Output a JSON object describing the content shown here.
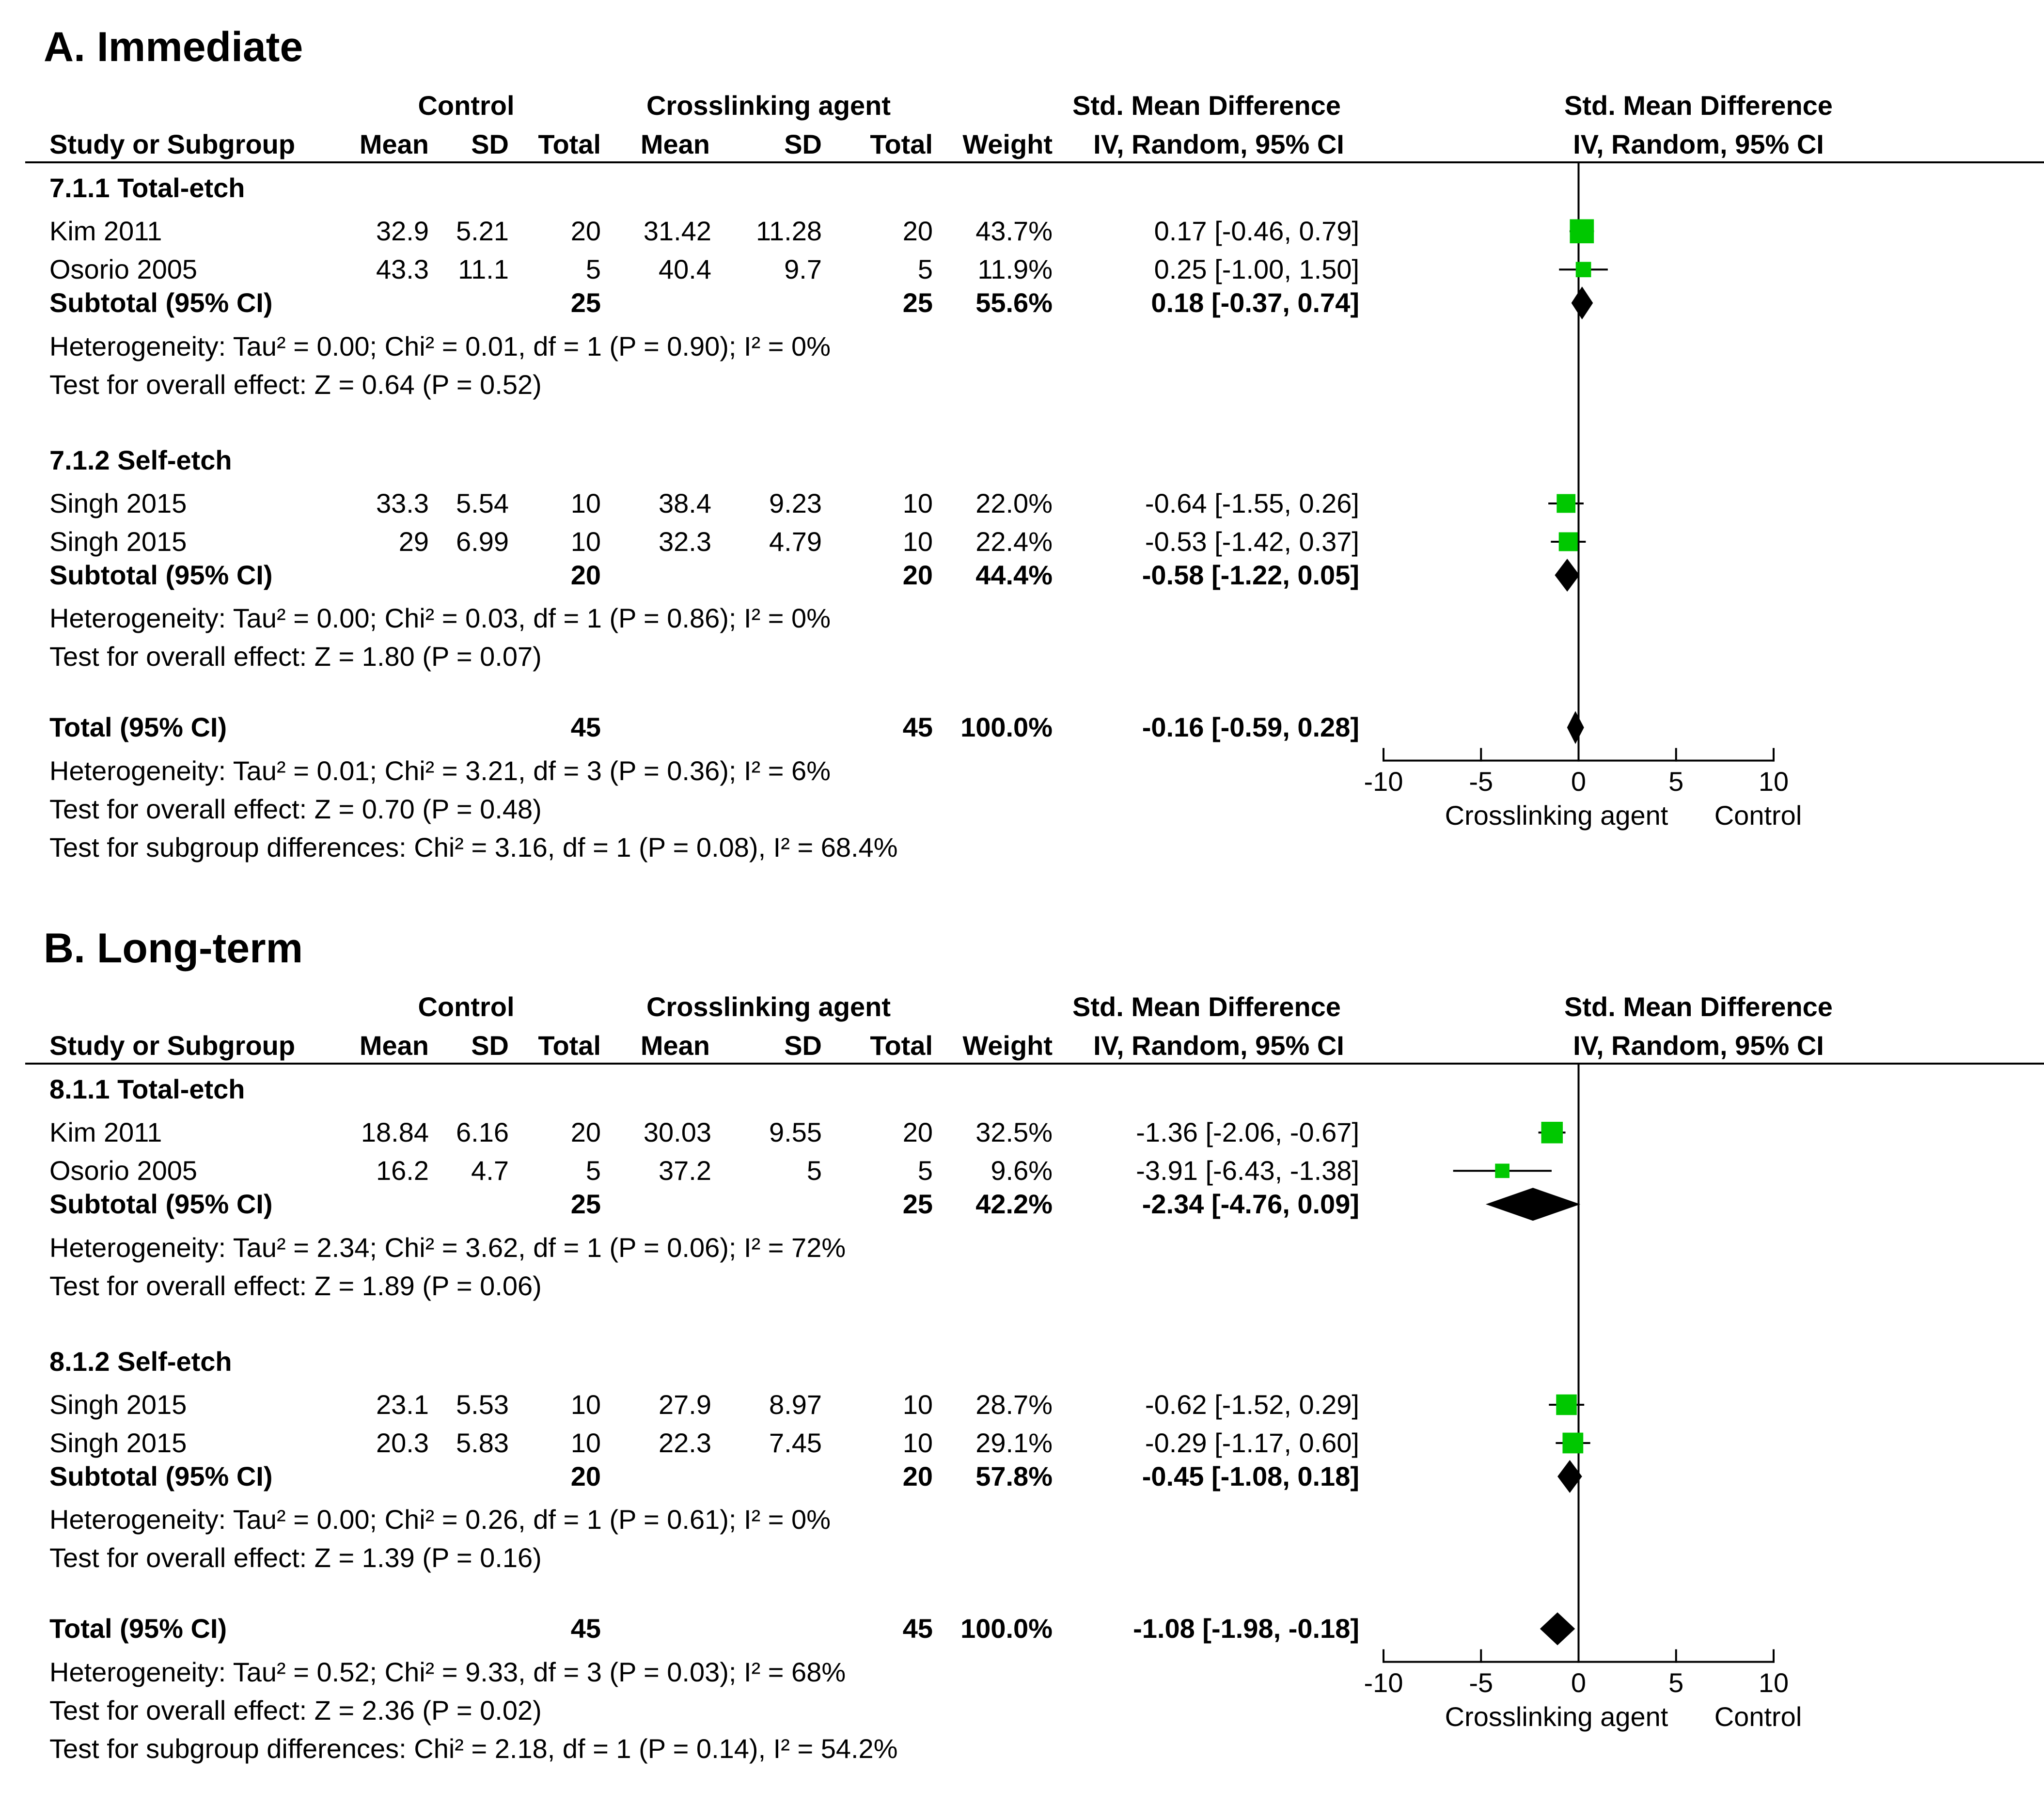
{
  "chart_data": [
    {
      "type": "forest",
      "title": "A. Immediate",
      "header": {
        "control": "Control",
        "treatment": "Crosslinking agent",
        "smd_col": "Std. Mean Difference",
        "smd_plot": "Std. Mean Difference",
        "cols": {
          "study": "Study or Subgroup",
          "c_mean": "Mean",
          "c_sd": "SD",
          "c_total": "Total",
          "t_mean": "Mean",
          "t_sd": "SD",
          "t_total": "Total",
          "weight": "Weight",
          "ci": "IV, Random, 95% CI",
          "plot_ci": "IV, Random, 95% CI"
        }
      },
      "subgroups": [
        {
          "label": "7.1.1 Total-etch",
          "studies": [
            {
              "name": "Kim 2011",
              "c_mean": "32.9",
              "c_sd": "5.21",
              "c_n": "20",
              "t_mean": "31.42",
              "t_sd": "11.28",
              "t_n": "20",
              "weight": "43.7%",
              "ci_text": "0.17 [-0.46, 0.79]",
              "est": 0.17,
              "lo": -0.46,
              "hi": 0.79,
              "w": 43.7
            },
            {
              "name": "Osorio 2005",
              "c_mean": "43.3",
              "c_sd": "11.1",
              "c_n": "5",
              "t_mean": "40.4",
              "t_sd": "9.7",
              "t_n": "5",
              "weight": "11.9%",
              "ci_text": "0.25 [-1.00, 1.50]",
              "est": 0.25,
              "lo": -1.0,
              "hi": 1.5,
              "w": 11.9
            }
          ],
          "subtotal": {
            "label": "Subtotal (95% CI)",
            "c_n": "25",
            "t_n": "25",
            "weight": "55.6%",
            "ci_text": "0.18 [-0.37, 0.74]",
            "est": 0.18,
            "lo": -0.37,
            "hi": 0.74
          },
          "heterogeneity": "Heterogeneity: Tau² = 0.00; Chi² = 0.01, df = 1 (P = 0.90); I² = 0%",
          "overall": "Test for overall effect: Z = 0.64 (P = 0.52)"
        },
        {
          "label": "7.1.2 Self-etch",
          "studies": [
            {
              "name": "Singh 2015",
              "c_mean": "33.3",
              "c_sd": "5.54",
              "c_n": "10",
              "t_mean": "38.4",
              "t_sd": "9.23",
              "t_n": "10",
              "weight": "22.0%",
              "ci_text": "-0.64 [-1.55, 0.26]",
              "est": -0.64,
              "lo": -1.55,
              "hi": 0.26,
              "w": 22.0
            },
            {
              "name": "Singh 2015",
              "c_mean": "29",
              "c_sd": "6.99",
              "c_n": "10",
              "t_mean": "32.3",
              "t_sd": "4.79",
              "t_n": "10",
              "weight": "22.4%",
              "ci_text": "-0.53 [-1.42, 0.37]",
              "est": -0.53,
              "lo": -1.42,
              "hi": 0.37,
              "w": 22.4
            }
          ],
          "subtotal": {
            "label": "Subtotal (95% CI)",
            "c_n": "20",
            "t_n": "20",
            "weight": "44.4%",
            "ci_text": "-0.58 [-1.22, 0.05]",
            "est": -0.58,
            "lo": -1.22,
            "hi": 0.05
          },
          "heterogeneity": "Heterogeneity: Tau² = 0.00; Chi² = 0.03, df = 1 (P = 0.86); I² = 0%",
          "overall": "Test for overall effect: Z = 1.80 (P = 0.07)"
        }
      ],
      "total": {
        "label": "Total (95% CI)",
        "c_n": "45",
        "t_n": "45",
        "weight": "100.0%",
        "ci_text": "-0.16 [-0.59, 0.28]",
        "est": -0.16,
        "lo": -0.59,
        "hi": 0.28
      },
      "footer": [
        "Heterogeneity: Tau² = 0.01; Chi² = 3.21, df = 3 (P = 0.36); I² = 6%",
        "Test for overall effect: Z = 0.70 (P = 0.48)",
        "Test for subgroup differences: Chi² = 3.16, df = 1 (P = 0.08), I² = 68.4%"
      ],
      "axis": {
        "min": -10,
        "max": 10,
        "ticks": [
          -10,
          -5,
          0,
          5,
          10
        ],
        "tick_labels": [
          "-10",
          "-5",
          "0",
          "5",
          "10"
        ],
        "left_label": "Crosslinking agent",
        "right_label": "Control"
      }
    },
    {
      "type": "forest",
      "title": "B. Long-term",
      "header": {
        "control": "Control",
        "treatment": "Crosslinking agent",
        "smd_col": "Std. Mean Difference",
        "smd_plot": "Std. Mean Difference",
        "cols": {
          "study": "Study or Subgroup",
          "c_mean": "Mean",
          "c_sd": "SD",
          "c_total": "Total",
          "t_mean": "Mean",
          "t_sd": "SD",
          "t_total": "Total",
          "weight": "Weight",
          "ci": "IV, Random, 95% CI",
          "plot_ci": "IV, Random, 95% CI"
        }
      },
      "subgroups": [
        {
          "label": "8.1.1 Total-etch",
          "studies": [
            {
              "name": "Kim 2011",
              "c_mean": "18.84",
              "c_sd": "6.16",
              "c_n": "20",
              "t_mean": "30.03",
              "t_sd": "9.55",
              "t_n": "20",
              "weight": "32.5%",
              "ci_text": "-1.36 [-2.06, -0.67]",
              "est": -1.36,
              "lo": -2.06,
              "hi": -0.67,
              "w": 32.5
            },
            {
              "name": "Osorio 2005",
              "c_mean": "16.2",
              "c_sd": "4.7",
              "c_n": "5",
              "t_mean": "37.2",
              "t_sd": "5",
              "t_n": "5",
              "weight": "9.6%",
              "ci_text": "-3.91 [-6.43, -1.38]",
              "est": -3.91,
              "lo": -6.43,
              "hi": -1.38,
              "w": 9.6
            }
          ],
          "subtotal": {
            "label": "Subtotal (95% CI)",
            "c_n": "25",
            "t_n": "25",
            "weight": "42.2%",
            "ci_text": "-2.34 [-4.76, 0.09]",
            "est": -2.34,
            "lo": -4.76,
            "hi": 0.09
          },
          "heterogeneity": "Heterogeneity: Tau² = 2.34; Chi² = 3.62, df = 1 (P = 0.06); I² = 72%",
          "overall": "Test for overall effect: Z = 1.89 (P = 0.06)"
        },
        {
          "label": "8.1.2 Self-etch",
          "studies": [
            {
              "name": "Singh 2015",
              "c_mean": "23.1",
              "c_sd": "5.53",
              "c_n": "10",
              "t_mean": "27.9",
              "t_sd": "8.97",
              "t_n": "10",
              "weight": "28.7%",
              "ci_text": "-0.62 [-1.52, 0.29]",
              "est": -0.62,
              "lo": -1.52,
              "hi": 0.29,
              "w": 28.7
            },
            {
              "name": "Singh 2015",
              "c_mean": "20.3",
              "c_sd": "5.83",
              "c_n": "10",
              "t_mean": "22.3",
              "t_sd": "7.45",
              "t_n": "10",
              "weight": "29.1%",
              "ci_text": "-0.29 [-1.17, 0.60]",
              "est": -0.29,
              "lo": -1.17,
              "hi": 0.6,
              "w": 29.1
            }
          ],
          "subtotal": {
            "label": "Subtotal (95% CI)",
            "c_n": "20",
            "t_n": "20",
            "weight": "57.8%",
            "ci_text": "-0.45 [-1.08, 0.18]",
            "est": -0.45,
            "lo": -1.08,
            "hi": 0.18
          },
          "heterogeneity": "Heterogeneity: Tau² = 0.00; Chi² = 0.26, df = 1 (P = 0.61); I² = 0%",
          "overall": "Test for overall effect: Z = 1.39 (P = 0.16)"
        }
      ],
      "total": {
        "label": "Total (95% CI)",
        "c_n": "45",
        "t_n": "45",
        "weight": "100.0%",
        "ci_text": "-1.08 [-1.98, -0.18]",
        "est": -1.08,
        "lo": -1.98,
        "hi": -0.18
      },
      "footer": [
        "Heterogeneity: Tau² = 0.52; Chi² = 9.33, df = 3 (P = 0.03); I² = 68%",
        "Test for overall effect: Z = 2.36 (P = 0.02)",
        "Test for subgroup differences: Chi² = 2.18, df = 1 (P = 0.14), I² = 54.2%"
      ],
      "axis": {
        "min": -10,
        "max": 10,
        "ticks": [
          -10,
          -5,
          0,
          5,
          10
        ],
        "tick_labels": [
          "-10",
          "-5",
          "0",
          "5",
          "10"
        ],
        "left_label": "Crosslinking agent",
        "right_label": "Control"
      }
    }
  ],
  "colors": {
    "study_marker": "#00c800",
    "diamond": "#000000",
    "text": "#000000"
  }
}
